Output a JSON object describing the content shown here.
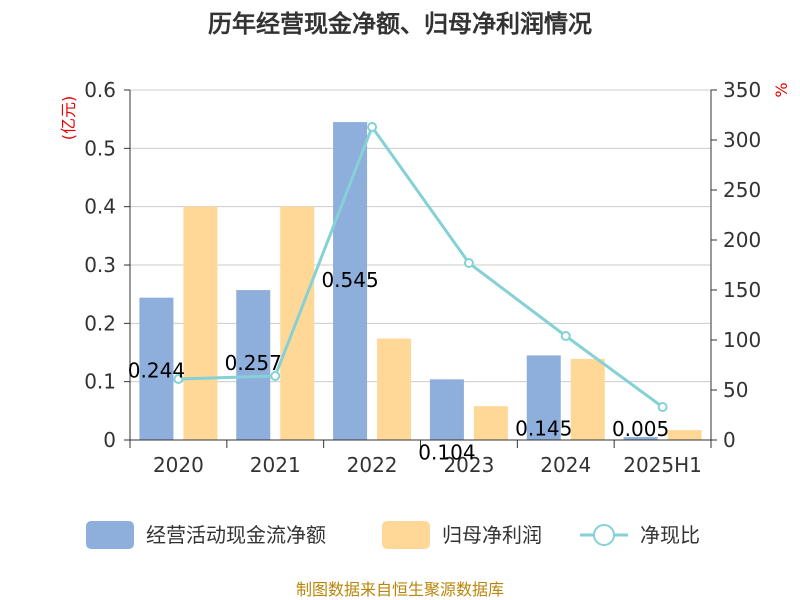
{
  "chart_data": {
    "type": "bar",
    "title": "历年经营现金净额、归母净利润情况",
    "categories": [
      "2020",
      "2021",
      "2022",
      "2023",
      "2024",
      "2025H1"
    ],
    "series": [
      {
        "name": "经营活动现金流净额",
        "type": "bar",
        "axis": "left",
        "color": "#8eaedb",
        "values": [
          0.244,
          0.257,
          0.545,
          0.104,
          0.145,
          0.005
        ],
        "data_labels": [
          "0.244",
          "0.257",
          "0.545",
          "0.104",
          "0.145",
          "0.005"
        ]
      },
      {
        "name": "归母净利润",
        "type": "bar",
        "axis": "left",
        "color": "#ffd898",
        "values": [
          0.4,
          0.4,
          0.174,
          0.058,
          0.139,
          0.017
        ]
      },
      {
        "name": "净现比",
        "type": "line",
        "axis": "right",
        "color": "#85d1d6",
        "values": [
          61,
          64,
          313,
          177,
          104,
          33
        ]
      }
    ],
    "y_left": {
      "unit": "(亿元)",
      "min": 0,
      "max": 0.6,
      "ticks": [
        "0",
        "0.1",
        "0.2",
        "0.3",
        "0.4",
        "0.5",
        "0.6"
      ]
    },
    "y_right": {
      "unit": "%",
      "min": 0,
      "max": 350,
      "ticks": [
        "0",
        "50",
        "100",
        "150",
        "200",
        "250",
        "300",
        "350"
      ]
    },
    "grid": true,
    "legend_position": "bottom"
  },
  "source_note": "制图数据来自恒生聚源数据库"
}
